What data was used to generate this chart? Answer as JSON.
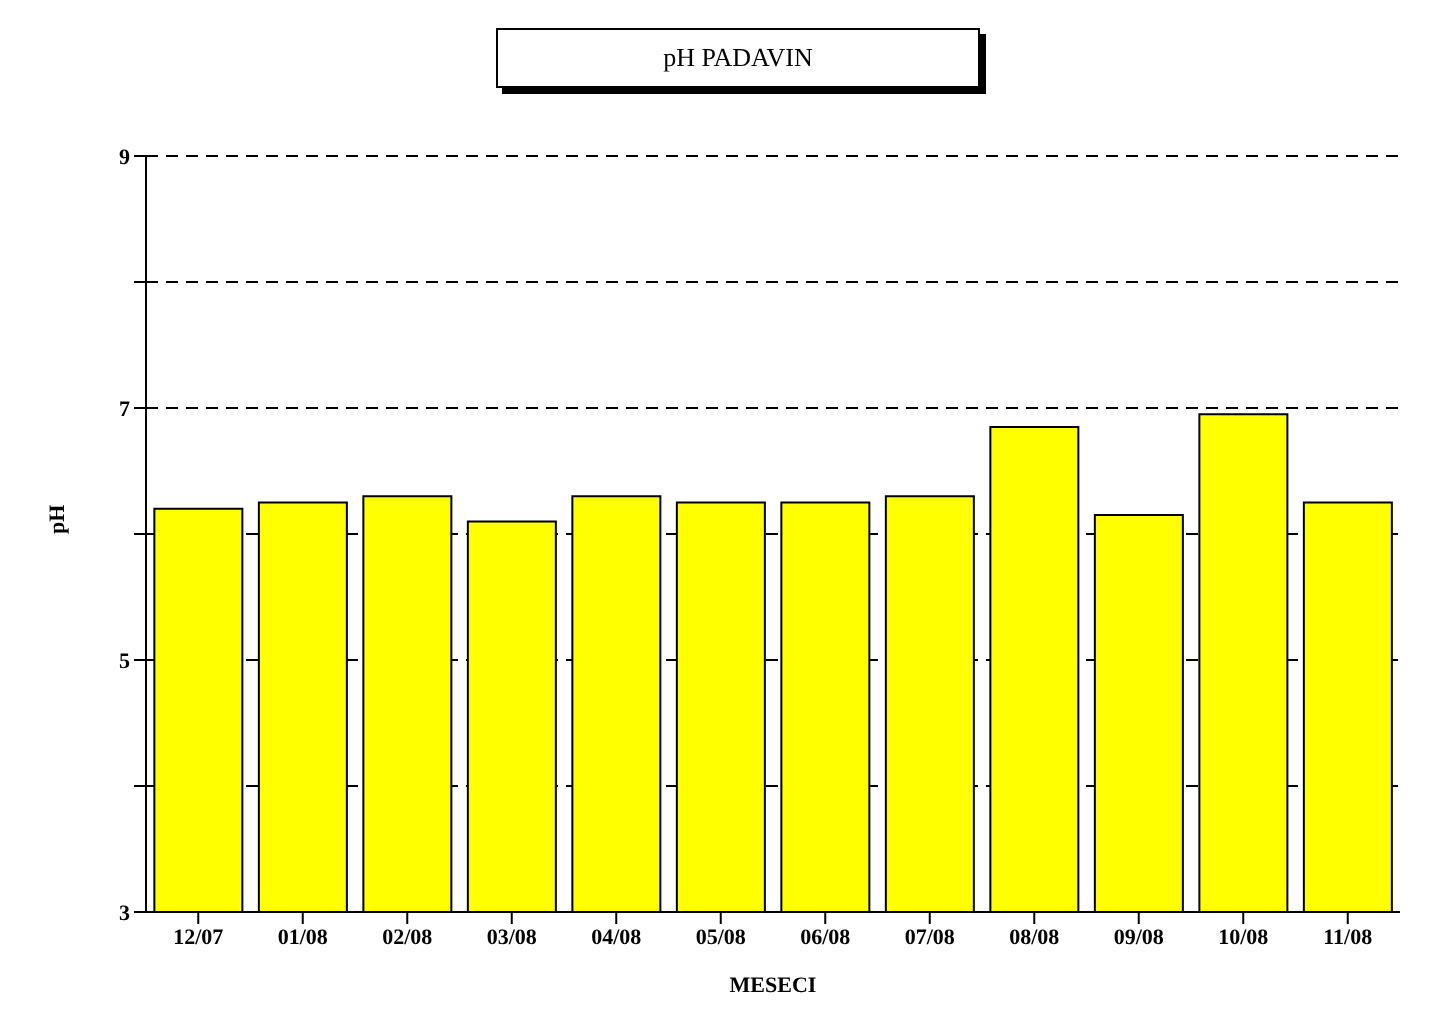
{
  "chart_data": {
    "type": "bar",
    "title": "pH PADAVIN",
    "xlabel": "MESECI",
    "ylabel": "pH",
    "categories": [
      "12/07",
      "01/08",
      "02/08",
      "03/08",
      "04/08",
      "05/08",
      "06/08",
      "07/08",
      "08/08",
      "09/08",
      "10/08",
      "11/08"
    ],
    "values": [
      6.2,
      6.25,
      6.3,
      6.1,
      6.3,
      6.25,
      6.25,
      6.3,
      6.85,
      6.15,
      6.95,
      6.25
    ],
    "color": "#ffff00",
    "ylim": [
      3,
      9
    ],
    "yticks": [
      3,
      {
        "value": 4,
        "label": null
      },
      5,
      {
        "value": 6,
        "label": null
      },
      7,
      {
        "value": 8,
        "label": null
      },
      9
    ],
    "grid": "y",
    "line_style": "dashed"
  }
}
